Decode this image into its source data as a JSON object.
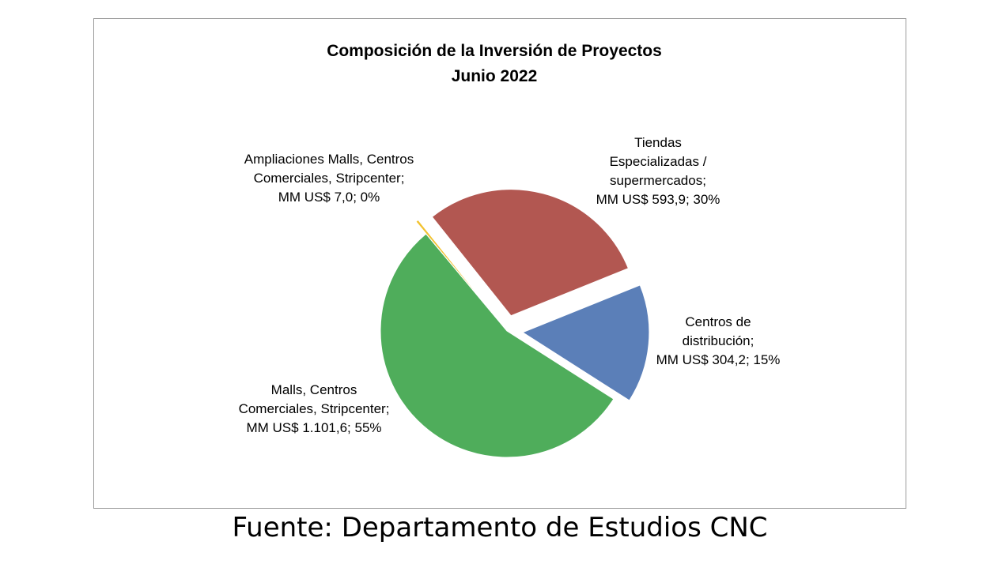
{
  "chart_data": {
    "type": "pie",
    "title": "Composición de la Inversión de Proyectos",
    "subtitle": "Junio 2022",
    "unit": "MM US$",
    "slices": [
      {
        "category": "Centros de distribución",
        "value": 304.2,
        "percent": 15,
        "color": "#5b7fb8",
        "label_lines": [
          "Centros de",
          "distribución;",
          "MM US$ 304,2; 15%"
        ]
      },
      {
        "category": "Malls, Centros Comerciales, Stripcenter",
        "value": 1101.6,
        "percent": 55,
        "color": "#4fad5b",
        "label_lines": [
          "Malls, Centros",
          "Comerciales, Stripcenter;",
          "MM US$ 1.101,6; 55%"
        ]
      },
      {
        "category": "Ampliaciones Malls, Centros Comerciales, Stripcenter",
        "value": 7.0,
        "percent": 0,
        "color": "#f2c230",
        "label_lines": [
          "Ampliaciones Malls, Centros",
          "Comerciales, Stripcenter;",
          "MM US$ 7,0; 0%"
        ]
      },
      {
        "category": "Tiendas Especializadas / supermercados",
        "value": 593.9,
        "percent": 30,
        "color": "#b25751",
        "label_lines": [
          "Tiendas",
          "Especializadas /",
          "supermercados;",
          "MM US$ 593,9; 30%"
        ]
      }
    ]
  },
  "footer": {
    "source": "Fuente: Departamento de Estudios CNC"
  }
}
